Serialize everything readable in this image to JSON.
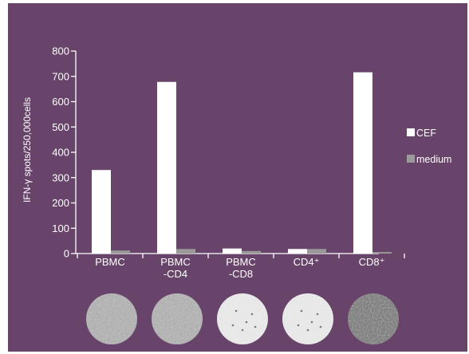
{
  "colors": {
    "background": "#68446a",
    "cef": "#ffffff",
    "medium": "#9a9a9a",
    "axis": "#ffffff"
  },
  "chart_data": {
    "type": "bar",
    "categories": [
      "PBMC",
      "PBMC\n-CD4",
      "PBMC\n-CD8",
      "CD4⁺",
      "CD8⁺"
    ],
    "series": [
      {
        "name": "CEF",
        "values": [
          330,
          678,
          20,
          18,
          716
        ]
      },
      {
        "name": "medium",
        "values": [
          12,
          18,
          10,
          18,
          6
        ]
      }
    ],
    "ylabel": "IFN-γ spots/250,000cells",
    "xlabel": "",
    "title": "",
    "ylim": [
      0,
      800
    ],
    "yticks": [
      0,
      100,
      200,
      300,
      400,
      500,
      600,
      700,
      800
    ],
    "grid": false,
    "legend": "right",
    "well_images": [
      {
        "category": "PBMC",
        "density": "high"
      },
      {
        "category": "PBMC -CD4",
        "density": "high"
      },
      {
        "category": "PBMC -CD8",
        "density": "low"
      },
      {
        "category": "CD4⁺",
        "density": "low"
      },
      {
        "category": "CD8⁺",
        "density": "very-high"
      }
    ]
  }
}
